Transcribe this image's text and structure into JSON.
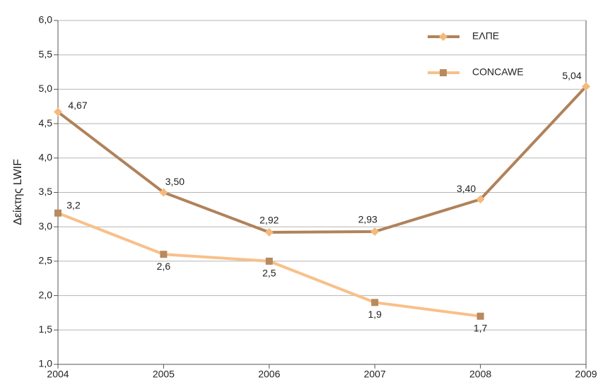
{
  "chart_data": {
    "type": "line",
    "y_label": "Δείκτης LWIF",
    "x": [
      2004,
      2005,
      2006,
      2007,
      2008,
      2009
    ],
    "xlim": [
      2004,
      2009
    ],
    "xticks": [
      2004,
      2005,
      2006,
      2007,
      2008,
      2009
    ],
    "ylim": [
      1,
      6
    ],
    "yticks": [
      {
        "value": 1,
        "label": "1,0"
      },
      {
        "value": 1.5,
        "label": "1,5"
      },
      {
        "value": 2,
        "label": "2,0"
      },
      {
        "value": 2.5,
        "label": "2,5"
      },
      {
        "value": 3,
        "label": "3,0"
      },
      {
        "value": 3.5,
        "label": "3,5"
      },
      {
        "value": 4,
        "label": "4,0"
      },
      {
        "value": 4.5,
        "label": "4,5"
      },
      {
        "value": 5,
        "label": "5,0"
      },
      {
        "value": 5.5,
        "label": "5,5"
      },
      {
        "value": 6,
        "label": "6,0"
      }
    ],
    "grid": true,
    "legend": "top-right",
    "series": [
      {
        "name": "ΕΛΠΕ",
        "color": "#b0825a",
        "marker": "diamond",
        "marker_color": "#f6b97c",
        "values": [
          4.67,
          3.5,
          2.92,
          2.93,
          3.4,
          5.04
        ],
        "value_labels": [
          "4,67",
          "3,50",
          "2,92",
          "2,93",
          "3,40",
          "5,04"
        ]
      },
      {
        "name": "CONCAWE",
        "color": "#f8c08a",
        "marker": "square",
        "marker_color": "#b88a5e",
        "values": [
          3.2,
          2.6,
          2.5,
          1.9,
          1.7,
          null
        ],
        "value_labels": [
          "3,2",
          "2,6",
          "2,5",
          "1,9",
          "1,7",
          null
        ]
      }
    ]
  }
}
